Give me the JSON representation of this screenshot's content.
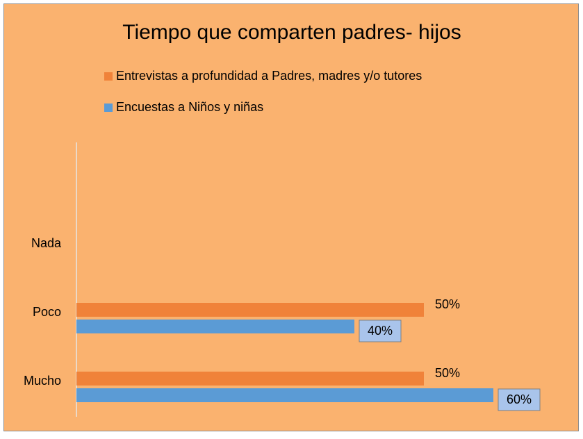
{
  "chart_data": {
    "type": "bar",
    "orientation": "horizontal",
    "title": "Tiempo que comparten padres- hijos",
    "categories": [
      "Nada",
      "Poco",
      "Mucho"
    ],
    "series": [
      {
        "name": "Entrevistas a profundidad a Padres, madres y/o tutores",
        "color": "#f08239",
        "values": [
          null,
          50,
          50
        ],
        "value_labels": [
          null,
          "50%",
          "50%"
        ]
      },
      {
        "name": "Encuestas a Niños y niñas",
        "color": "#5b9bd5",
        "values": [
          null,
          40,
          60
        ],
        "value_labels": [
          null,
          "40%",
          "60%"
        ]
      }
    ],
    "xlim": [
      0,
      70
    ]
  }
}
